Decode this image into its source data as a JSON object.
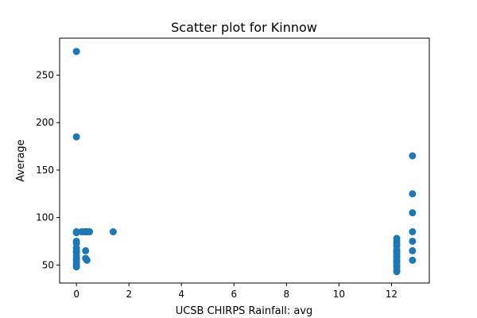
{
  "chart_data": {
    "type": "scatter",
    "title": "Scatter plot for Kinnow",
    "xlabel": "UCSB CHIRPS Rainfall: avg",
    "ylabel": "Average",
    "xlim": [
      -0.64,
      13.44
    ],
    "ylim": [
      31,
      289
    ],
    "xticks": [
      0,
      2,
      4,
      6,
      8,
      10,
      12
    ],
    "yticks": [
      50,
      100,
      150,
      200,
      250
    ],
    "grid": false,
    "legend": "none",
    "color": "#1f77b4",
    "points": [
      {
        "x": 0,
        "y": 275
      },
      {
        "x": 0,
        "y": 185
      },
      {
        "x": 0,
        "y": 85
      },
      {
        "x": 0,
        "y": 84
      },
      {
        "x": 0,
        "y": 75
      },
      {
        "x": 0,
        "y": 73
      },
      {
        "x": 0,
        "y": 68
      },
      {
        "x": 0,
        "y": 65
      },
      {
        "x": 0,
        "y": 63
      },
      {
        "x": 0,
        "y": 60
      },
      {
        "x": 0,
        "y": 57
      },
      {
        "x": 0,
        "y": 55
      },
      {
        "x": 0,
        "y": 52
      },
      {
        "x": 0,
        "y": 50
      },
      {
        "x": 0,
        "y": 48
      },
      {
        "x": 0.2,
        "y": 85
      },
      {
        "x": 0.3,
        "y": 85
      },
      {
        "x": 0.35,
        "y": 85
      },
      {
        "x": 0.4,
        "y": 85
      },
      {
        "x": 0.5,
        "y": 85
      },
      {
        "x": 0.35,
        "y": 65
      },
      {
        "x": 0.35,
        "y": 57
      },
      {
        "x": 0.4,
        "y": 55
      },
      {
        "x": 1.4,
        "y": 85
      },
      {
        "x": 12.2,
        "y": 78
      },
      {
        "x": 12.2,
        "y": 75
      },
      {
        "x": 12.2,
        "y": 72
      },
      {
        "x": 12.2,
        "y": 70
      },
      {
        "x": 12.2,
        "y": 66
      },
      {
        "x": 12.2,
        "y": 64
      },
      {
        "x": 12.2,
        "y": 62
      },
      {
        "x": 12.2,
        "y": 60
      },
      {
        "x": 12.2,
        "y": 58
      },
      {
        "x": 12.2,
        "y": 55
      },
      {
        "x": 12.2,
        "y": 53
      },
      {
        "x": 12.2,
        "y": 50
      },
      {
        "x": 12.2,
        "y": 48
      },
      {
        "x": 12.2,
        "y": 45
      },
      {
        "x": 12.2,
        "y": 43
      },
      {
        "x": 12.8,
        "y": 165
      },
      {
        "x": 12.8,
        "y": 125
      },
      {
        "x": 12.8,
        "y": 105
      },
      {
        "x": 12.8,
        "y": 85
      },
      {
        "x": 12.8,
        "y": 75
      },
      {
        "x": 12.8,
        "y": 65
      },
      {
        "x": 12.8,
        "y": 55
      }
    ]
  }
}
